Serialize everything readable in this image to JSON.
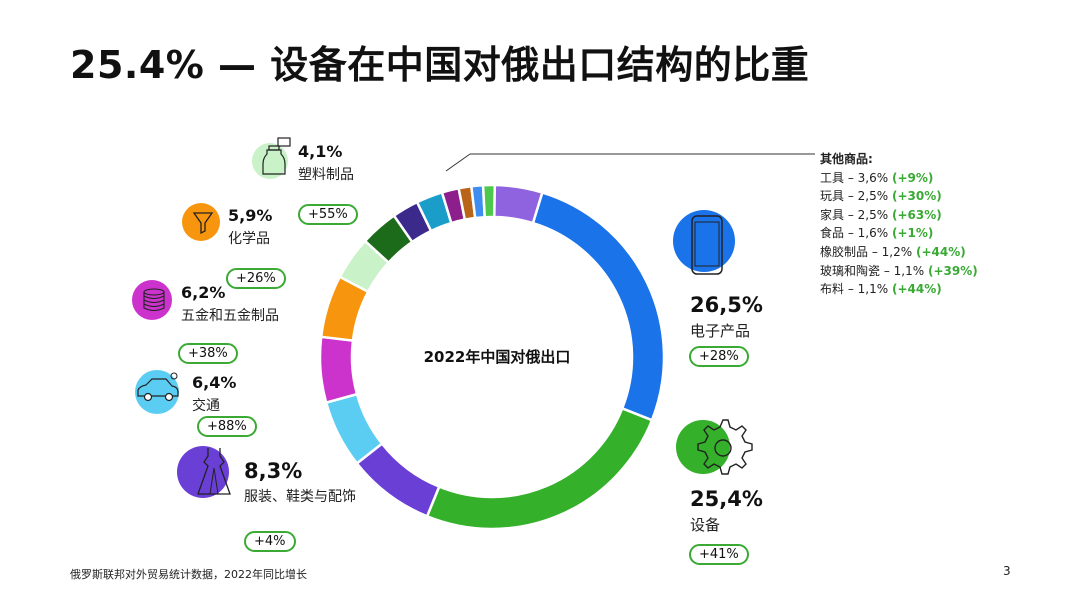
{
  "title": "25.4% — 设备在中国对俄出口结构的比重",
  "chart_data": {
    "type": "pie",
    "center_label": "2022年中国对俄出口",
    "slices": [
      {
        "label": "电子产品",
        "value": 26.5,
        "value_text": "26,5%",
        "growth": "+28%",
        "color": "#1a73e8"
      },
      {
        "label": "设备",
        "value": 25.4,
        "value_text": "25,4%",
        "growth": "+41%",
        "color": "#35b02b"
      },
      {
        "label": "服装、鞋类与配饰",
        "value": 8.3,
        "value_text": "8,3%",
        "growth": "+4%",
        "color": "#6a3fd6"
      },
      {
        "label": "交通",
        "value": 6.4,
        "value_text": "6,4%",
        "growth": "+88%",
        "color": "#5ccdf2"
      },
      {
        "label": "五金和五金制品",
        "value": 6.2,
        "value_text": "6,2%",
        "growth": "+38%",
        "color": "#cc33cc"
      },
      {
        "label": "化学品",
        "value": 5.9,
        "value_text": "5,9%",
        "growth": "+26%",
        "color": "#f7960e"
      },
      {
        "label": "塑料制品",
        "value": 4.1,
        "value_text": "4,1%",
        "growth": "+55%",
        "color": "#c9f2c9"
      },
      {
        "label": "工具",
        "value": 3.6,
        "value_text": "3,6%",
        "growth": "+9%",
        "color": "#1b6b1b"
      },
      {
        "label": "玩具",
        "value": 2.5,
        "value_text": "2,5%",
        "growth": "+30%",
        "color": "#3b2a8c"
      },
      {
        "label": "家具",
        "value": 2.5,
        "value_text": "2,5%",
        "growth": "+63%",
        "color": "#1a9ec9"
      },
      {
        "label": "食品",
        "value": 1.6,
        "value_text": "1,6%",
        "growth": "+1%",
        "color": "#8c1f8c"
      },
      {
        "label": "橡胶制品",
        "value": 1.2,
        "value_text": "1,2%",
        "growth": "+44%",
        "color": "#b8651a"
      },
      {
        "label": "玻璃和陶瓷",
        "value": 1.1,
        "value_text": "1,1%",
        "growth": "+39%",
        "color": "#3d8ef0"
      },
      {
        "label": "布料",
        "value": 1.1,
        "value_text": "1,1%",
        "growth": "+44%",
        "color": "#4cc94c"
      },
      {
        "label": "",
        "value": 4.5,
        "value_text": "",
        "growth": "",
        "color": "#8f63e0"
      }
    ]
  },
  "other_goods": {
    "heading": "其他商品:",
    "items": [
      {
        "text": "工具 – 3,6%",
        "growth": "(+9%)"
      },
      {
        "text": "玩具 – 2,5%",
        "growth": "(+30%)"
      },
      {
        "text": "家具 – 2,5%",
        "growth": "(+63%)"
      },
      {
        "text": "食品 – 1,6%",
        "growth": "(+1%)"
      },
      {
        "text": "橡胶制品 – 1,2%",
        "growth": "(+44%)"
      },
      {
        "text": "玻璃和陶瓷 – 1,1%",
        "growth": "(+39%)"
      },
      {
        "text": "布料 – 1,1%",
        "growth": "(+44%)"
      }
    ]
  },
  "icons": {
    "plastics": "plastic-bottles-icon",
    "chemicals": "funnel-icon",
    "metals": "metal-coins-icon",
    "transport": "car-icon",
    "clothing": "dress-icon",
    "electronics": "smartphone-icon",
    "equipment": "gear-icon"
  },
  "footer": "俄罗斯联邦对外贸易统计数据，2022年同比增长",
  "page_number": "3"
}
